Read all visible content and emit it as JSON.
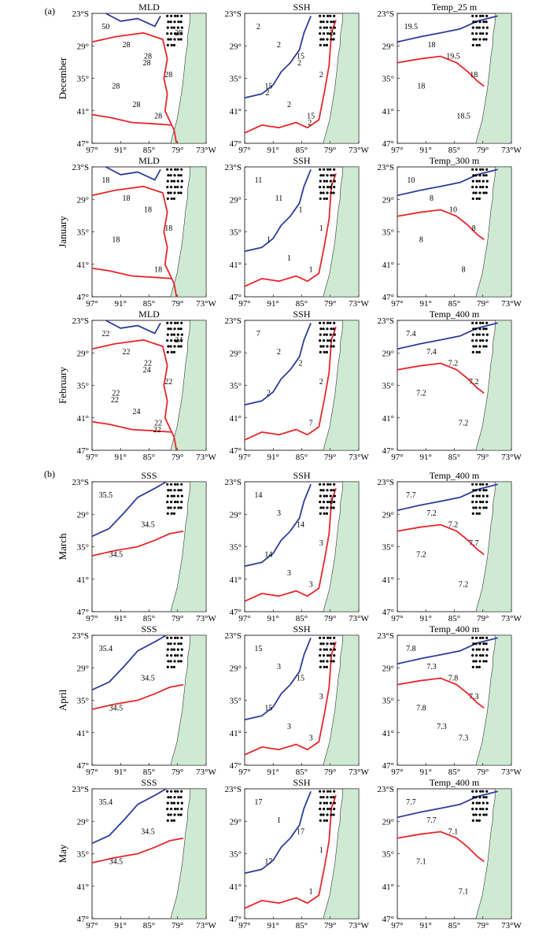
{
  "figure": {
    "section_labels": [
      "(a)",
      "(b)"
    ],
    "column_titles": [
      [
        "MLD",
        "SSH",
        "Temp_25 m"
      ],
      [
        "MLD",
        "SSH",
        "Temp_300 m"
      ],
      [
        "MLD",
        "SSH",
        "Temp_400 m"
      ],
      [
        "SSS",
        "SSH",
        "Temp_400 m"
      ],
      [
        "SSS",
        "SSH",
        "Temp_400 m"
      ],
      [
        "SSS",
        "SSH",
        "Temp_400 m"
      ]
    ],
    "row_labels": [
      "December",
      "January",
      "February",
      "March",
      "April",
      "May"
    ],
    "x_ticks": [
      "97°",
      "91°",
      "85°",
      "79°",
      "73°W"
    ],
    "y_ticks": [
      "23°S",
      "29°",
      "35°",
      "41°",
      "47°"
    ],
    "colors": {
      "red_contour": "#e8262a",
      "blue_contour": "#2d3c9a",
      "land": "#cfead3",
      "coast": "#333333",
      "dots": "#000000"
    },
    "contour_labels": [
      [
        [
          "50",
          "28",
          "28",
          "28",
          "28",
          "28",
          "28",
          "28",
          "28"
        ],
        [
          "2",
          "15",
          "15",
          "15",
          "2",
          "2",
          "2",
          "2",
          "2",
          "2",
          "2"
        ],
        [
          "19.5",
          "19.5",
          "18",
          "18.5",
          "18",
          "18"
        ]
      ],
      [
        [
          "18",
          "18",
          "18",
          "18",
          "18",
          "18"
        ],
        [
          "11",
          "1",
          "1",
          "1",
          "11",
          "1",
          "1",
          "1"
        ],
        [
          "10",
          "10",
          "8",
          "8",
          "8",
          "8"
        ]
      ],
      [
        [
          "22",
          "22",
          "22",
          "22",
          "22",
          "22",
          "24",
          "24",
          "24",
          "22",
          "22"
        ],
        [
          "7",
          "2",
          "2",
          "7",
          "2",
          "2"
        ],
        [
          "7.4",
          "7.2",
          "7.2",
          "7.2",
          "7.4",
          "7.2"
        ]
      ],
      [
        [
          "35.5",
          "34.5",
          "34.5"
        ],
        [
          "14",
          "14",
          "14",
          "3",
          "3",
          "3",
          "3",
          "3"
        ],
        [
          "7.7",
          "7.2",
          "7.2",
          "7.2",
          "7.2",
          "7.7"
        ]
      ],
      [
        [
          "35.4",
          "34.5",
          "34.5"
        ],
        [
          "15",
          "15",
          "15",
          "3",
          "3",
          "3",
          "3"
        ],
        [
          "7.8",
          "7.8",
          "7.8",
          "7.3",
          "7.3",
          "7.3",
          "7.3"
        ]
      ],
      [
        [
          "35.4",
          "34.5",
          "34.5"
        ],
        [
          "17",
          "17",
          "17",
          "1",
          "1",
          "1"
        ],
        [
          "7.7",
          "7.1",
          "7.1",
          "7.1",
          "7.7"
        ]
      ]
    ]
  }
}
